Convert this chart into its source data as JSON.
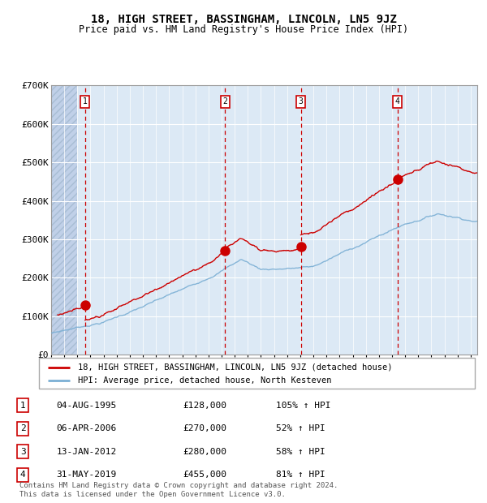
{
  "title": "18, HIGH STREET, BASSINGHAM, LINCOLN, LN5 9JZ",
  "subtitle": "Price paid vs. HM Land Registry's House Price Index (HPI)",
  "footer": "Contains HM Land Registry data © Crown copyright and database right 2024.\nThis data is licensed under the Open Government Licence v3.0.",
  "legend_red": "18, HIGH STREET, BASSINGHAM, LINCOLN, LN5 9JZ (detached house)",
  "legend_blue": "HPI: Average price, detached house, North Kesteven",
  "transactions": [
    {
      "num": 1,
      "date": "04-AUG-1995",
      "price": 128000,
      "pct": "105%",
      "dir": "↑",
      "year": 1995.59
    },
    {
      "num": 2,
      "date": "06-APR-2006",
      "price": 270000,
      "pct": "52%",
      "dir": "↑",
      "year": 2006.27
    },
    {
      "num": 3,
      "date": "13-JAN-2012",
      "price": 280000,
      "pct": "58%",
      "dir": "↑",
      "year": 2012.04
    },
    {
      "num": 4,
      "date": "31-MAY-2019",
      "price": 455000,
      "pct": "81%",
      "dir": "↑",
      "year": 2019.42
    }
  ],
  "ylim": [
    0,
    700000
  ],
  "yticks": [
    0,
    100000,
    200000,
    300000,
    400000,
    500000,
    600000,
    700000
  ],
  "ytick_labels": [
    "£0",
    "£100K",
    "£200K",
    "£300K",
    "£400K",
    "£500K",
    "£600K",
    "£700K"
  ],
  "xlim_start": 1993.0,
  "xlim_end": 2025.5,
  "bg_color": "#dce9f5",
  "hatch_color": "#c0d0e8",
  "grid_color": "#ffffff",
  "red_color": "#cc0000",
  "blue_color": "#7bafd4",
  "marker_color": "#cc0000"
}
